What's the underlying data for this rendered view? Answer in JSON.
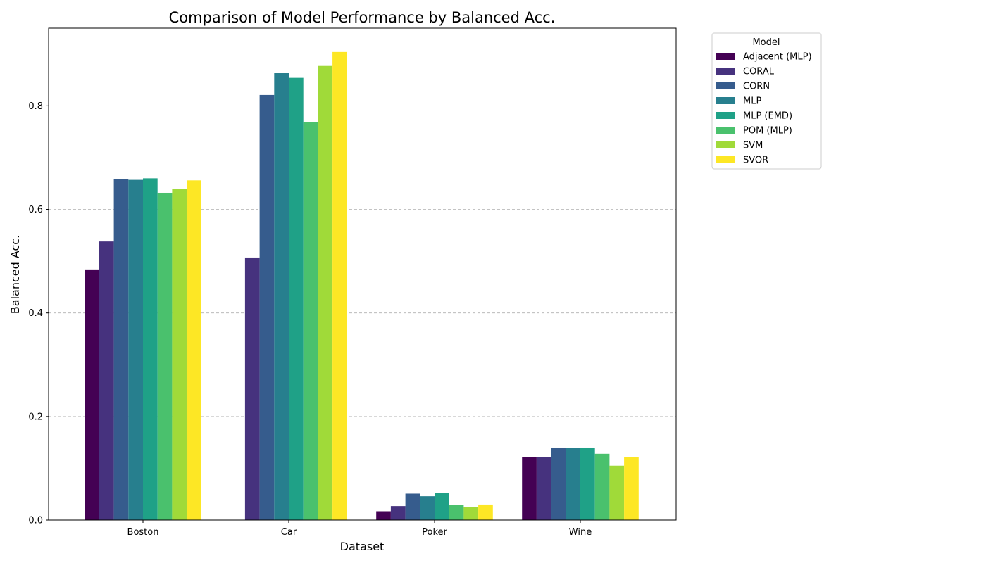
{
  "chart_data": {
    "type": "bar",
    "title": "Comparison of Model Performance by Balanced Acc.",
    "xlabel": "Dataset",
    "ylabel": "Balanced Acc.",
    "ylim": [
      0,
      0.95
    ],
    "yticks": [
      "0.0",
      "0.2",
      "0.4",
      "0.6",
      "0.8"
    ],
    "grid": "y, dashed",
    "legend_title": "Model",
    "legend_position": "outside top-right",
    "categories": [
      "Boston",
      "Car",
      "Poker",
      "Wine"
    ],
    "series": [
      {
        "name": "Adjacent (MLP)",
        "color": "#440154",
        "values": [
          0.484,
          0.0,
          0.017,
          0.122
        ]
      },
      {
        "name": "CORAL",
        "color": "#46327e",
        "values": [
          0.538,
          0.507,
          0.027,
          0.121
        ]
      },
      {
        "name": "CORN",
        "color": "#365c8d",
        "values": [
          0.659,
          0.821,
          0.051,
          0.14
        ]
      },
      {
        "name": "MLP",
        "color": "#277f8e",
        "values": [
          0.657,
          0.863,
          0.046,
          0.139
        ]
      },
      {
        "name": "MLP (EMD)",
        "color": "#1fa187",
        "values": [
          0.66,
          0.854,
          0.052,
          0.14
        ]
      },
      {
        "name": "POM (MLP)",
        "color": "#4ac16d",
        "values": [
          0.632,
          0.769,
          0.029,
          0.128
        ]
      },
      {
        "name": "SVM",
        "color": "#a0da39",
        "values": [
          0.64,
          0.877,
          0.025,
          0.105
        ]
      },
      {
        "name": "SVOR",
        "color": "#fde725",
        "values": [
          0.656,
          0.904,
          0.03,
          0.121
        ]
      }
    ]
  }
}
